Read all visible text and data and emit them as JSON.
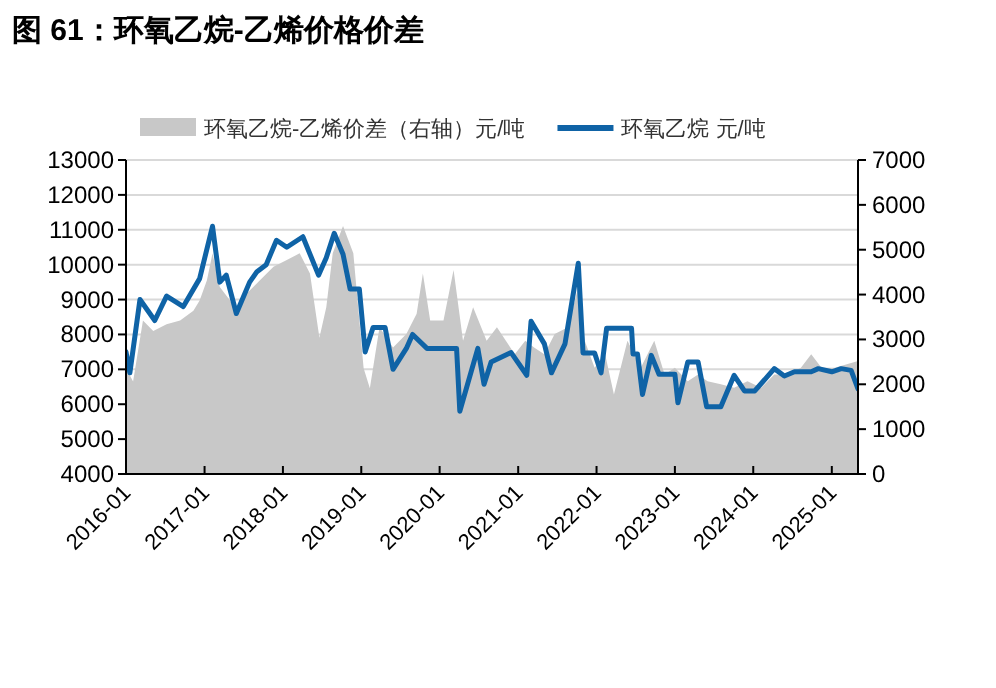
{
  "chart_data": {
    "type": "line",
    "title": "图 61：环氧乙烷-乙烯价格价差",
    "xlim": [
      "2016-01-01",
      "2025-05-03"
    ],
    "xticks": [
      "2016-01",
      "2017-01",
      "2018-01",
      "2019-01",
      "2020-01",
      "2021-01",
      "2022-01",
      "2023-01",
      "2024-01",
      "2025-01"
    ],
    "ylim": [
      4000,
      13000
    ],
    "yticks": [
      4000,
      5000,
      6000,
      7000,
      8000,
      9000,
      10000,
      11000,
      12000,
      13000
    ],
    "y2lim": [
      0,
      7000
    ],
    "y2ticks": [
      0,
      1000,
      2000,
      3000,
      4000,
      5000,
      6000,
      7000
    ],
    "grid": "y",
    "legend": "top",
    "series": [
      {
        "name": "环氧乙烷-乙烯价差（右轴）元/吨",
        "type": "area",
        "axis": "y2",
        "color": "#c8c8c8",
        "x": [
          "2016-01-01",
          "2016-02-03",
          "2016-03-20",
          "2016-05-07",
          "2016-07-08",
          "2016-09-09",
          "2016-11-10",
          "2016-12-09",
          "2017-01-12",
          "2017-02-07",
          "2017-03-13",
          "2017-04-30",
          "2017-05-29",
          "2017-07-15",
          "2017-09-16",
          "2017-11-18",
          "2018-01-19",
          "2018-03-20",
          "2018-05-07",
          "2018-06-20",
          "2018-07-22",
          "2018-08-21",
          "2018-10-08",
          "2018-11-25",
          "2019-01-12",
          "2019-02-10",
          "2019-03-27",
          "2019-05-29",
          "2019-07-30",
          "2019-09-16",
          "2019-10-15",
          "2019-11-18",
          "2020-01-19",
          "2020-03-06",
          "2020-04-19",
          "2020-06-05",
          "2020-08-07",
          "2020-09-24",
          "2020-12-16",
          "2021-02-03",
          "2021-03-16",
          "2021-05-03",
          "2021-06-20",
          "2021-08-21",
          "2021-10-08",
          "2021-11-07",
          "2021-12-23",
          "2022-02-10",
          "2022-03-23",
          "2022-05-25",
          "2022-07-26",
          "2022-09-27",
          "2022-11-14",
          "2023-01-01",
          "2023-03-02",
          "2023-04-19",
          "2023-06-02",
          "2023-08-03",
          "2023-10-04",
          "2023-12-05",
          "2024-02-07",
          "2024-04-08",
          "2024-06-09",
          "2024-08-10",
          "2024-09-27",
          "2024-11-14",
          "2025-01-15",
          "2025-03-16",
          "2025-05-03"
        ],
        "values": [
          2360,
          2060,
          3420,
          3190,
          3340,
          3420,
          3640,
          3870,
          4320,
          4920,
          4170,
          3870,
          3570,
          4020,
          4320,
          4620,
          4770,
          4920,
          4470,
          3040,
          3720,
          4920,
          5530,
          4920,
          2360,
          1910,
          3270,
          2820,
          3120,
          3570,
          4470,
          3420,
          3420,
          4550,
          2970,
          3720,
          2970,
          3270,
          2670,
          2970,
          2820,
          2670,
          3120,
          3270,
          4170,
          2970,
          2370,
          2670,
          1770,
          2970,
          2370,
          2970,
          2220,
          2370,
          2070,
          2220,
          2070,
          2000,
          1920,
          2070,
          1920,
          2220,
          2220,
          2370,
          2670,
          2370,
          2370,
          2450,
          2520
        ]
      },
      {
        "name": "环氧乙烷 元/吨",
        "color": "#0f63a6",
        "x": [
          "2016-01-01",
          "2016-01-19",
          "2016-03-06",
          "2016-05-14",
          "2016-07-08",
          "2016-09-24",
          "2016-12-09",
          "2017-02-07",
          "2017-03-13",
          "2017-04-12",
          "2017-05-29",
          "2017-07-30",
          "2017-09-02",
          "2017-10-15",
          "2017-12-02",
          "2018-01-19",
          "2018-04-04",
          "2018-06-16",
          "2018-07-22",
          "2018-08-28",
          "2018-10-08",
          "2018-11-10",
          "2018-12-23",
          "2019-01-19",
          "2019-02-25",
          "2019-04-22",
          "2019-05-29",
          "2019-07-30",
          "2019-08-28",
          "2019-11-03",
          "2020-03-20",
          "2020-04-04",
          "2020-06-27",
          "2020-07-26",
          "2020-08-28",
          "2020-11-29",
          "2021-02-10",
          "2021-03-02",
          "2021-05-03",
          "2021-06-05",
          "2021-08-07",
          "2021-10-08",
          "2021-10-30",
          "2021-12-23",
          "2022-01-22",
          "2022-02-17",
          "2022-06-13",
          "2022-06-20",
          "2022-07-11",
          "2022-08-03",
          "2022-09-13",
          "2022-10-19",
          "2023-01-01",
          "2023-01-15",
          "2023-03-02",
          "2023-04-19",
          "2023-05-29",
          "2023-08-03",
          "2023-10-04",
          "2023-11-21",
          "2024-01-08",
          "2024-04-08",
          "2024-05-25",
          "2024-07-11",
          "2024-09-27",
          "2024-10-30",
          "2025-01-01",
          "2025-02-14",
          "2025-04-01",
          "2025-05-03"
        ],
        "values": [
          7500,
          6900,
          9000,
          8400,
          9100,
          8800,
          9600,
          11100,
          9500,
          9700,
          8600,
          9500,
          9800,
          10000,
          10700,
          10500,
          10800,
          9700,
          10200,
          10900,
          10300,
          9300,
          9300,
          7500,
          8200,
          8200,
          7000,
          7600,
          8000,
          7600,
          7600,
          5800,
          7600,
          6570,
          7210,
          7480,
          6830,
          8380,
          7730,
          6900,
          7730,
          10040,
          7470,
          7470,
          6900,
          8180,
          8180,
          7440,
          7440,
          6280,
          7400,
          6860,
          6860,
          6040,
          7210,
          7210,
          5930,
          5930,
          6830,
          6380,
          6380,
          7020,
          6810,
          6930,
          6930,
          7020,
          6930,
          7020,
          6970,
          6440
        ]
      }
    ]
  }
}
